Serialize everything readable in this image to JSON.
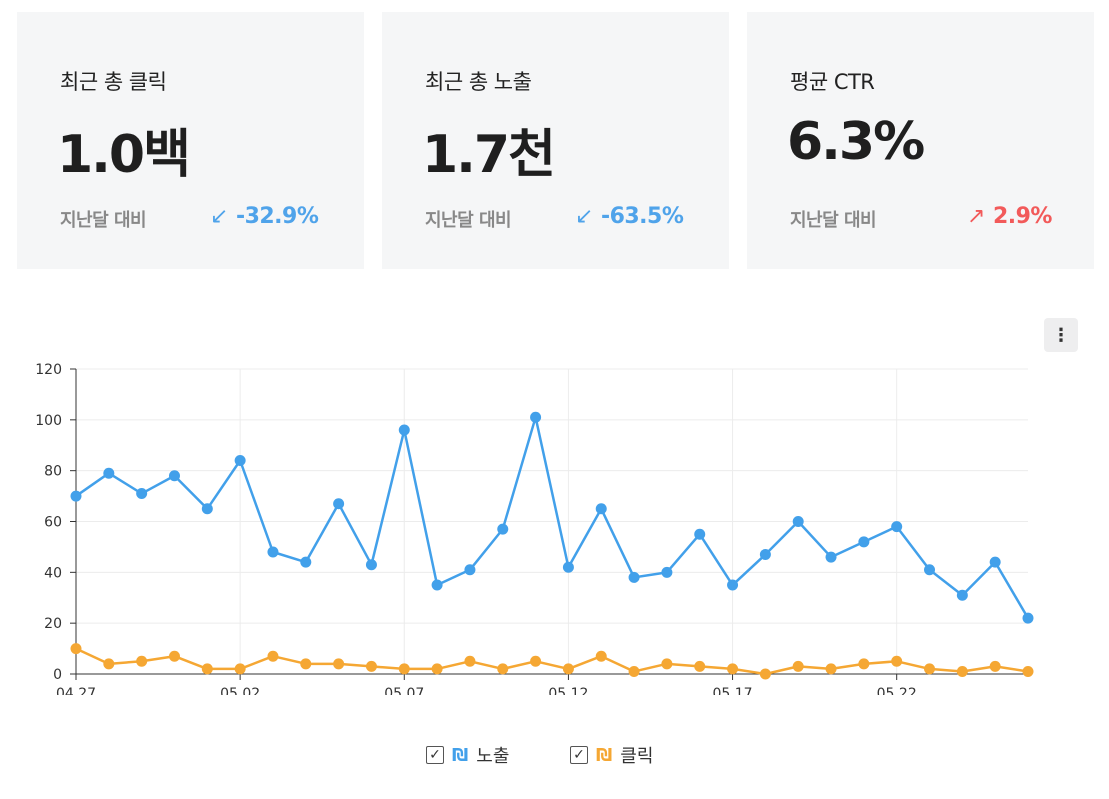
{
  "cards": [
    {
      "title": "최근 총 클릭",
      "value": "1.0백",
      "compare_label": "지난달 대비",
      "delta_arrow": "↙",
      "delta": "-32.9%",
      "delta_color": "#4fa3ea"
    },
    {
      "title": "최근 총 노출",
      "value": "1.7천",
      "compare_label": "지난달 대비",
      "delta_arrow": "↙",
      "delta": "-63.5%",
      "delta_color": "#4fa3ea"
    },
    {
      "title": "평균 CTR",
      "value": "6.3%",
      "compare_label": "지난달 대비",
      "delta_arrow": "↗",
      "delta": "2.9%",
      "delta_color": "#f25a5a"
    }
  ],
  "menu_icon": "more-vertical-icon",
  "menu_glyph": "⋮",
  "legend": [
    {
      "label": "노출",
      "checked": true,
      "color": "#42a0ea",
      "glyph": "₪",
      "check": "✓"
    },
    {
      "label": "클릭",
      "checked": true,
      "color": "#f5a733",
      "glyph": "₪",
      "check": "✓"
    }
  ],
  "chart_data": {
    "type": "line",
    "x": [
      "04.27",
      "04.28",
      "04.29",
      "04.30",
      "05.01",
      "05.02",
      "05.03",
      "05.04",
      "05.05",
      "05.06",
      "05.07",
      "05.08",
      "05.09",
      "05.10",
      "05.11",
      "05.12",
      "05.13",
      "05.14",
      "05.15",
      "05.16",
      "05.17",
      "05.18",
      "05.19",
      "05.20",
      "05.21",
      "05.22",
      "05.23",
      "05.24",
      "05.25",
      "05.26"
    ],
    "x_tick_labels": [
      "04.27",
      "05.02",
      "05.07",
      "05.12",
      "05.17",
      "05.22"
    ],
    "ylim": [
      0,
      120
    ],
    "y_ticks": [
      0,
      20,
      40,
      60,
      80,
      100,
      120
    ],
    "grid": true,
    "legend_position": "bottom-center",
    "series": [
      {
        "name": "노출",
        "color": "#42a0ea",
        "values": [
          70,
          79,
          71,
          78,
          65,
          84,
          48,
          44,
          67,
          43,
          96,
          35,
          41,
          57,
          101,
          42,
          65,
          38,
          40,
          55,
          35,
          47,
          60,
          46,
          52,
          58,
          41,
          31,
          44,
          22
        ]
      },
      {
        "name": "클릭",
        "color": "#f5a733",
        "values": [
          10,
          4,
          5,
          7,
          2,
          2,
          7,
          4,
          4,
          3,
          2,
          2,
          5,
          2,
          5,
          2,
          7,
          1,
          4,
          3,
          2,
          0,
          3,
          2,
          4,
          5,
          2,
          1,
          3,
          1
        ]
      }
    ]
  }
}
